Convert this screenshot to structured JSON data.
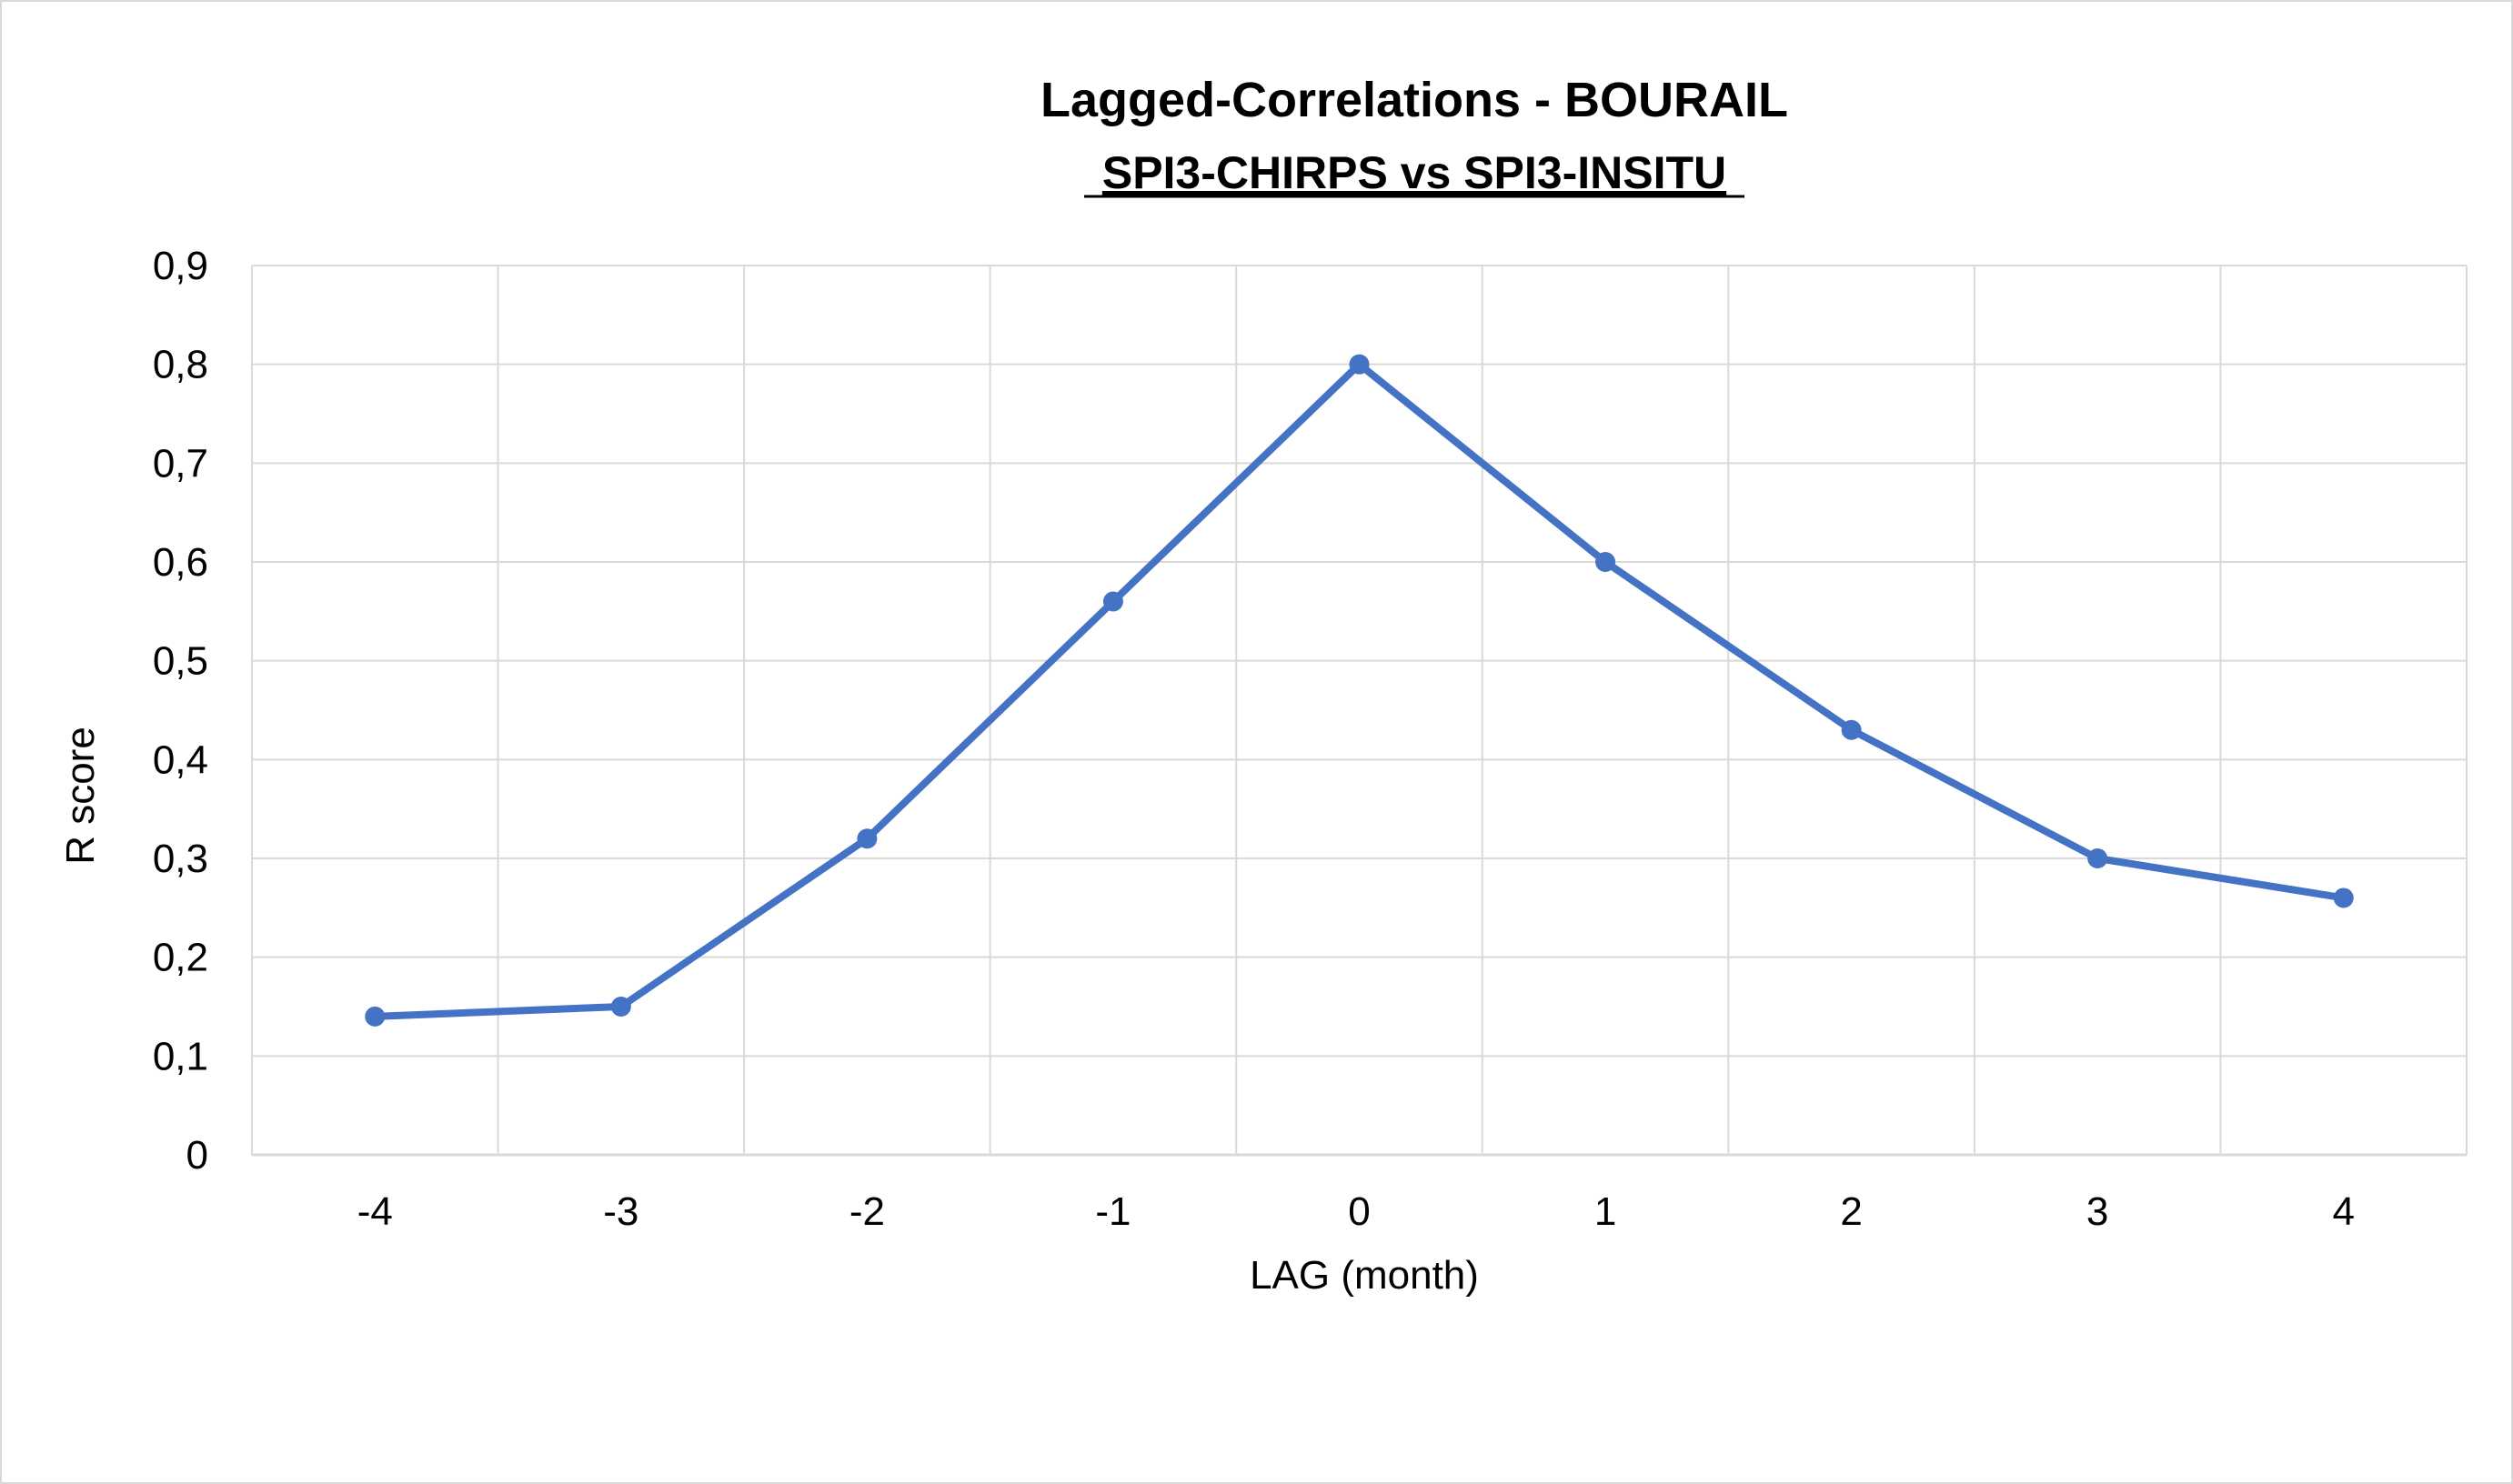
{
  "chart_data": {
    "type": "line",
    "title": "Lagged-Correlations - BOURAIL",
    "subtitle": "SPI3-CHIRPS vs SPI3-INSITU",
    "xlabel": "LAG (month)",
    "ylabel": "R score",
    "x": [
      -4,
      -3,
      -2,
      -1,
      0,
      1,
      2,
      3,
      4
    ],
    "x_tick_labels": [
      "-4",
      "-3",
      "-2",
      "-1",
      "0",
      "1",
      "2",
      "3",
      "4"
    ],
    "series": [
      {
        "values": [
          0.14,
          0.15,
          0.32,
          0.56,
          0.8,
          0.6,
          0.43,
          0.3,
          0.26
        ],
        "color": "#4472c4",
        "marker": "circle"
      }
    ],
    "ylim": [
      0,
      0.9
    ],
    "y_ticks": [
      0,
      0.1,
      0.2,
      0.3,
      0.4,
      0.5,
      0.6,
      0.7,
      0.8,
      0.9
    ],
    "y_tick_labels": [
      "0",
      "0,1",
      "0,2",
      "0,3",
      "0,4",
      "0,5",
      "0,6",
      "0,7",
      "0,8",
      "0,9"
    ],
    "grid": true,
    "legend": "none",
    "colors": {
      "line": "#4472c4",
      "grid": "#d9d9d9",
      "frame": "#d9d9d9",
      "text": "#000000"
    }
  }
}
